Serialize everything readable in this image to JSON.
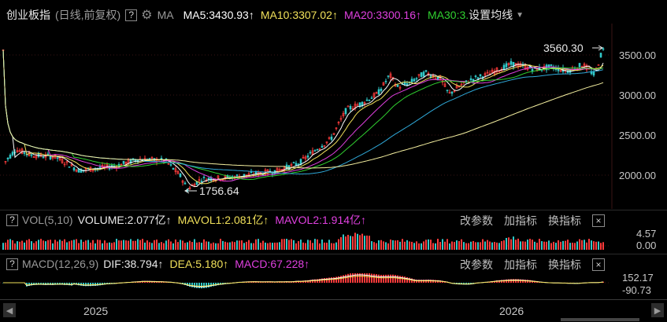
{
  "header": {
    "title": "创业板指",
    "subtitle": "(日线,前复权)",
    "help": "?",
    "ma_label": "MA",
    "ma5": "MA5:3430.93",
    "ma10": "MA10:3307.02",
    "ma20": "MA20:3300.16",
    "ma30": "MA30:3.",
    "settings": "设置均线",
    "arrow": "↑"
  },
  "price_axis": {
    "ticks": [
      "3500.00",
      "3000.00",
      "2500.00",
      "2000.00"
    ],
    "high_marker": "3560.30",
    "low_marker": "1756.64"
  },
  "volume": {
    "label": "VOL(5,10)",
    "volume": "VOLUME:2.077亿",
    "mavol1": "MAVOL1:2.081亿",
    "mavol2": "MAVOL2:1.914亿",
    "arrow": "↑",
    "btn_params": "改参数",
    "btn_add": "加指标",
    "btn_switch": "换指标",
    "close": "×",
    "axis_ticks": [
      "4.57",
      "0.00"
    ]
  },
  "macd": {
    "label": "MACD(12,26,9)",
    "dif": "DIF:38.794",
    "dea": "DEA:5.180",
    "macd": "MACD:67.228",
    "arrow": "↑",
    "btn_params": "改参数",
    "btn_add": "加指标",
    "btn_switch": "换指标",
    "close": "×",
    "axis_ticks": [
      "152.17",
      "-90.73"
    ]
  },
  "x_axis": {
    "labels": [
      "2025",
      "2026"
    ],
    "scroll_left": "◀",
    "scroll_right": "▶"
  },
  "colors": {
    "ma5": "#ffffff",
    "ma10": "#f0e05a",
    "ma20": "#e040e0",
    "ma30": "#30d030",
    "ma60": "#2fa8d8",
    "ma120": "#f5f0a0",
    "up": "#ff3b3b",
    "down": "#30c8c8"
  }
}
